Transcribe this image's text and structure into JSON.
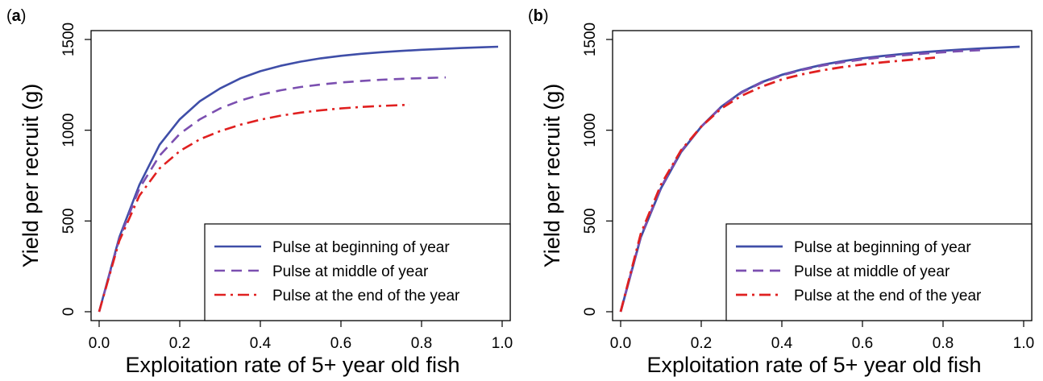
{
  "chart_data": [
    {
      "type": "line",
      "panel_label_letter": "a",
      "xlabel": "Exploitation rate of 5+ year old fish",
      "ylabel": "Yield per recruit (g)",
      "xlim": [
        0,
        1.0
      ],
      "ylim": [
        0,
        1500
      ],
      "x_ticks": [
        "0.0",
        "0.2",
        "0.4",
        "0.6",
        "0.8",
        "1.0"
      ],
      "y_ticks": [
        "0",
        "500",
        "1000",
        "1500"
      ],
      "grid": false,
      "legend_position": "bottom-right",
      "series": [
        {
          "name": "Pulse at beginning of year",
          "color": "#3f4ea8",
          "style": "solid",
          "x": [
            0.0,
            0.05,
            0.1,
            0.15,
            0.2,
            0.25,
            0.3,
            0.35,
            0.4,
            0.45,
            0.5,
            0.55,
            0.6,
            0.65,
            0.7,
            0.75,
            0.8,
            0.85,
            0.9,
            0.95,
            0.99
          ],
          "y": [
            0,
            410,
            700,
            920,
            1060,
            1160,
            1230,
            1285,
            1325,
            1355,
            1378,
            1396,
            1410,
            1421,
            1430,
            1437,
            1443,
            1448,
            1453,
            1457,
            1460
          ]
        },
        {
          "name": "Pulse at middle of year",
          "color": "#7b4fb0",
          "style": "dashed",
          "x": [
            0.0,
            0.05,
            0.1,
            0.15,
            0.2,
            0.25,
            0.3,
            0.35,
            0.4,
            0.45,
            0.5,
            0.55,
            0.6,
            0.65,
            0.7,
            0.75,
            0.8,
            0.86
          ],
          "y": [
            0,
            400,
            680,
            860,
            980,
            1060,
            1120,
            1163,
            1195,
            1220,
            1238,
            1252,
            1263,
            1271,
            1278,
            1283,
            1287,
            1291
          ]
        },
        {
          "name": "Pulse at the end of the year",
          "color": "#e02020",
          "style": "dashdot",
          "x": [
            0.0,
            0.05,
            0.1,
            0.15,
            0.2,
            0.25,
            0.3,
            0.35,
            0.4,
            0.45,
            0.5,
            0.55,
            0.6,
            0.65,
            0.7,
            0.77
          ],
          "y": [
            0,
            390,
            640,
            790,
            885,
            950,
            995,
            1030,
            1058,
            1080,
            1097,
            1110,
            1120,
            1128,
            1134,
            1140
          ]
        }
      ]
    },
    {
      "type": "line",
      "panel_label_letter": "b",
      "xlabel": "Exploitation rate of 5+ year old fish",
      "ylabel": "Yield per recruit (g)",
      "xlim": [
        0,
        1.0
      ],
      "ylim": [
        0,
        1500
      ],
      "x_ticks": [
        "0.0",
        "0.2",
        "0.4",
        "0.6",
        "0.8",
        "1.0"
      ],
      "y_ticks": [
        "0",
        "500",
        "1000",
        "1500"
      ],
      "grid": false,
      "legend_position": "bottom-right",
      "series": [
        {
          "name": "Pulse at beginning of year",
          "color": "#3f4ea8",
          "style": "solid",
          "x": [
            0.0,
            0.05,
            0.1,
            0.15,
            0.2,
            0.25,
            0.3,
            0.35,
            0.4,
            0.45,
            0.5,
            0.55,
            0.6,
            0.65,
            0.7,
            0.75,
            0.8,
            0.85,
            0.9,
            0.95,
            0.99
          ],
          "y": [
            0,
            410,
            680,
            880,
            1020,
            1130,
            1210,
            1265,
            1305,
            1335,
            1360,
            1380,
            1396,
            1409,
            1420,
            1430,
            1438,
            1445,
            1451,
            1456,
            1460
          ]
        },
        {
          "name": "Pulse at middle of year",
          "color": "#7b4fb0",
          "style": "dashed",
          "x": [
            0.0,
            0.05,
            0.1,
            0.15,
            0.2,
            0.25,
            0.3,
            0.35,
            0.4,
            0.45,
            0.5,
            0.55,
            0.6,
            0.65,
            0.7,
            0.75,
            0.8,
            0.85,
            0.9
          ],
          "y": [
            0,
            415,
            685,
            885,
            1020,
            1128,
            1207,
            1262,
            1302,
            1332,
            1356,
            1375,
            1390,
            1403,
            1413,
            1422,
            1430,
            1437,
            1442
          ]
        },
        {
          "name": "Pulse at the end of the year",
          "color": "#e02020",
          "style": "dashdot",
          "x": [
            0.0,
            0.05,
            0.1,
            0.15,
            0.2,
            0.25,
            0.3,
            0.35,
            0.4,
            0.45,
            0.5,
            0.55,
            0.6,
            0.65,
            0.7,
            0.78
          ],
          "y": [
            0,
            430,
            700,
            890,
            1020,
            1120,
            1190,
            1240,
            1280,
            1308,
            1330,
            1348,
            1362,
            1374,
            1384,
            1400
          ]
        }
      ]
    }
  ]
}
